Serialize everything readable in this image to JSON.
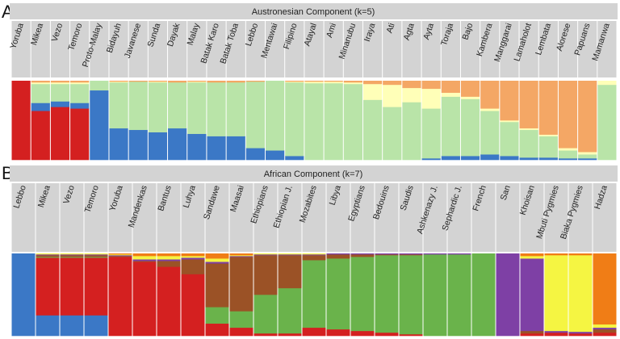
{
  "chart_data": [
    {
      "type": "bar",
      "panel": "A",
      "title": "Austronesian Component (k=5)",
      "colors": [
        "#d42020",
        "#3b78c6",
        "#b9e4a8",
        "#ffffb8",
        "#f4a765"
      ],
      "categories": [
        "Yoruba",
        "Mikea",
        "Vezo",
        "Temoro",
        "Proto-Malay",
        "Bidayuh",
        "Javanese",
        "Sunda",
        "Dayak",
        "Malay",
        "Batak Karo",
        "Batak Toba",
        "Lebbo",
        "Mentawai",
        "Filipino",
        "Atayal",
        "Ami",
        "Minanubu",
        "Iraya",
        "Ati",
        "Agta",
        "Ayta",
        "Toraja",
        "Bajo",
        "Kambera",
        "Manggarai",
        "Lamaholot",
        "Lembata",
        "Alorese",
        "Papuans",
        "Mamanwa"
      ],
      "series": [
        {
          "values": [
            1.0,
            0.62,
            0.67,
            0.65,
            0.0,
            0.0,
            0.0,
            0.0,
            0.0,
            0.0,
            0.0,
            0.0,
            0.0,
            0.0,
            0.0,
            0.0,
            0.0,
            0.0,
            0.0,
            0.0,
            0.0,
            0.0,
            0.0,
            0.0,
            0.0,
            0.0,
            0.0,
            0.0,
            0.0,
            0.0,
            0.0
          ]
        },
        {
          "values": [
            0.0,
            0.1,
            0.07,
            0.07,
            0.88,
            0.4,
            0.38,
            0.35,
            0.4,
            0.33,
            0.3,
            0.3,
            0.15,
            0.12,
            0.05,
            0.0,
            0.0,
            0.0,
            0.0,
            0.0,
            0.0,
            0.02,
            0.05,
            0.05,
            0.07,
            0.05,
            0.03,
            0.03,
            0.02,
            0.02,
            0.0
          ]
        },
        {
          "values": [
            0.0,
            0.24,
            0.22,
            0.24,
            0.12,
            0.58,
            0.61,
            0.63,
            0.58,
            0.65,
            0.68,
            0.68,
            0.84,
            0.88,
            0.93,
            0.97,
            0.97,
            0.96,
            0.76,
            0.67,
            0.73,
            0.63,
            0.75,
            0.72,
            0.55,
            0.43,
            0.35,
            0.27,
            0.1,
            0.05,
            0.95
          ]
        },
        {
          "values": [
            0.0,
            0.02,
            0.02,
            0.02,
            0.0,
            0.01,
            0.0,
            0.01,
            0.0,
            0.01,
            0.0,
            0.0,
            0.0,
            0.0,
            0.01,
            0.02,
            0.02,
            0.02,
            0.2,
            0.28,
            0.18,
            0.25,
            0.05,
            0.03,
            0.03,
            0.02,
            0.02,
            0.02,
            0.03,
            0.03,
            0.05
          ]
        },
        {
          "values": [
            0.0,
            0.02,
            0.02,
            0.02,
            0.0,
            0.01,
            0.01,
            0.01,
            0.02,
            0.01,
            0.02,
            0.02,
            0.01,
            0.0,
            0.01,
            0.01,
            0.01,
            0.02,
            0.04,
            0.05,
            0.09,
            0.1,
            0.15,
            0.2,
            0.35,
            0.5,
            0.6,
            0.68,
            0.85,
            0.9,
            0.0
          ]
        }
      ]
    },
    {
      "type": "bar",
      "panel": "B",
      "title": "African Component (k=7)",
      "colors": [
        "#3b78c6",
        "#d42020",
        "#6ab34b",
        "#9b5226",
        "#7e40a5",
        "#f5f542",
        "#f07d16"
      ],
      "categories": [
        "Lebbo",
        "Mikea",
        "Vezo",
        "Temoro",
        "Yoruba",
        "Mandenkas",
        "Bantus",
        "Luhya",
        "Sandawe",
        "Maasai",
        "Ethiopians",
        "Ethiopian J.",
        "Mozabites",
        "Libya",
        "Egyptians",
        "Bedouins",
        "Saudis",
        "Ashkenazy J.",
        "Sephardic J.",
        "French",
        "San",
        "Khoisan",
        "Mbuti Pygmies",
        "Biaka Pygmies",
        "Hadza"
      ],
      "series": [
        {
          "values": [
            1.0,
            0.25,
            0.25,
            0.25,
            0.0,
            0.0,
            0.0,
            0.0,
            0.0,
            0.0,
            0.0,
            0.0,
            0.0,
            0.0,
            0.0,
            0.0,
            0.0,
            0.0,
            0.0,
            0.0,
            0.0,
            0.0,
            0.0,
            0.0,
            0.0
          ]
        },
        {
          "values": [
            0.0,
            0.7,
            0.7,
            0.7,
            0.96,
            0.9,
            0.84,
            0.75,
            0.15,
            0.1,
            0.03,
            0.03,
            0.1,
            0.08,
            0.06,
            0.04,
            0.02,
            0.0,
            0.0,
            0.0,
            0.0,
            0.03,
            0.04,
            0.03,
            0.04
          ]
        },
        {
          "values": [
            0.0,
            0.01,
            0.01,
            0.01,
            0.0,
            0.0,
            0.0,
            0.0,
            0.2,
            0.2,
            0.47,
            0.55,
            0.82,
            0.86,
            0.9,
            0.94,
            0.96,
            0.99,
            0.99,
            1.0,
            0.0,
            0.0,
            0.0,
            0.0,
            0.0
          ]
        },
        {
          "values": [
            0.0,
            0.02,
            0.02,
            0.02,
            0.01,
            0.01,
            0.07,
            0.18,
            0.53,
            0.66,
            0.48,
            0.4,
            0.06,
            0.05,
            0.03,
            0.01,
            0.01,
            0.0,
            0.0,
            0.0,
            0.0,
            0.03,
            0.0,
            0.0,
            0.04
          ]
        },
        {
          "values": [
            0.0,
            0.01,
            0.01,
            0.01,
            0.01,
            0.02,
            0.02,
            0.02,
            0.02,
            0.01,
            0.01,
            0.01,
            0.01,
            0.01,
            0.01,
            0.01,
            0.01,
            0.01,
            0.01,
            0.0,
            1.0,
            0.88,
            0.02,
            0.02,
            0.02
          ]
        },
        {
          "values": [
            0.0,
            0.01,
            0.01,
            0.01,
            0.01,
            0.04,
            0.04,
            0.02,
            0.04,
            0.01,
            0.01,
            0.01,
            0.01,
            0.0,
            0.0,
            0.0,
            0.0,
            0.0,
            0.0,
            0.0,
            0.0,
            0.03,
            0.92,
            0.93,
            0.04
          ]
        },
        {
          "values": [
            0.0,
            0.0,
            0.0,
            0.0,
            0.01,
            0.03,
            0.03,
            0.03,
            0.06,
            0.02,
            0.0,
            0.0,
            0.0,
            0.0,
            0.0,
            0.0,
            0.0,
            0.0,
            0.0,
            0.0,
            0.0,
            0.03,
            0.02,
            0.02,
            0.86
          ]
        }
      ]
    }
  ]
}
